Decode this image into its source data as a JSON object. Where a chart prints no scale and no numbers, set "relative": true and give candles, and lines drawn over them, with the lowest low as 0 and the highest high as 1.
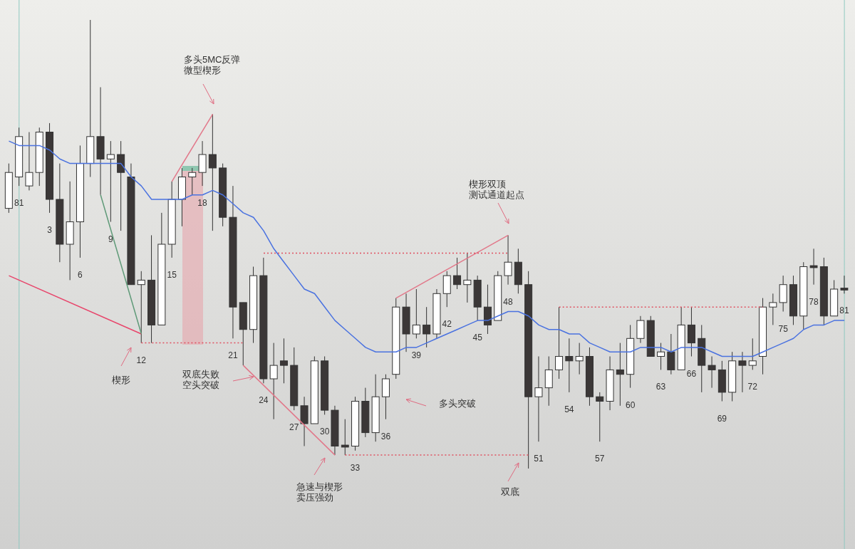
{
  "chart_data": {
    "type": "candlestick",
    "relative": true,
    "marker": "none",
    "categories": [
      null,
      "81",
      null,
      null,
      "3",
      null,
      null,
      "6",
      null,
      null,
      "9",
      null,
      null,
      "12",
      null,
      null,
      "15",
      null,
      null,
      "18",
      null,
      null,
      "21",
      null,
      null,
      "24",
      null,
      null,
      "27",
      null,
      null,
      "30",
      null,
      null,
      "33",
      null,
      null,
      "36",
      null,
      null,
      "39",
      null,
      null,
      "42",
      null,
      null,
      "45",
      null,
      null,
      "48",
      null,
      null,
      "51",
      null,
      null,
      "54",
      null,
      null,
      "57",
      null,
      null,
      "60",
      null,
      null,
      "63",
      null,
      null,
      "66",
      null,
      null,
      "69",
      null,
      null,
      "72",
      null,
      null,
      "75",
      null,
      null,
      "78",
      null,
      null,
      "81"
    ],
    "ohlc": [
      [
        0.58,
        0.68,
        0.57,
        0.66
      ],
      [
        0.65,
        0.76,
        0.63,
        0.74
      ],
      [
        0.63,
        0.75,
        0.62,
        0.66
      ],
      [
        0.66,
        0.76,
        0.63,
        0.75
      ],
      [
        0.75,
        0.77,
        0.57,
        0.6
      ],
      [
        0.6,
        0.68,
        0.46,
        0.5
      ],
      [
        0.5,
        0.64,
        0.42,
        0.55
      ],
      [
        0.55,
        0.72,
        0.47,
        0.68
      ],
      [
        0.68,
        1,
        0.65,
        0.74
      ],
      [
        0.74,
        0.85,
        0.61,
        0.69
      ],
      [
        0.69,
        0.73,
        0.55,
        0.7
      ],
      [
        0.7,
        0.73,
        0.53,
        0.66
      ],
      [
        0.65,
        0.68,
        0.41,
        0.41
      ],
      [
        0.41,
        0.44,
        0.28,
        0.42
      ],
      [
        0.42,
        0.52,
        0.28,
        0.32
      ],
      [
        0.32,
        0.57,
        0.32,
        0.5
      ],
      [
        0.5,
        0.64,
        0.47,
        0.6
      ],
      [
        0.6,
        0.67,
        0.54,
        0.65
      ],
      [
        0.65,
        0.67,
        0.61,
        0.66
      ],
      [
        0.66,
        0.73,
        0.63,
        0.7
      ],
      [
        0.7,
        0.79,
        0.53,
        0.67
      ],
      [
        0.67,
        0.68,
        0.54,
        0.56
      ],
      [
        0.56,
        0.63,
        0.29,
        0.36
      ],
      [
        0.37,
        0.37,
        0.23,
        0.31
      ],
      [
        0.31,
        0.45,
        0.28,
        0.43
      ],
      [
        0.43,
        0.47,
        0.19,
        0.2
      ],
      [
        0.2,
        0.28,
        0.11,
        0.23
      ],
      [
        0.24,
        0.29,
        0.19,
        0.23
      ],
      [
        0.23,
        0.27,
        0.13,
        0.14
      ],
      [
        0.14,
        0.16,
        0.05,
        0.1
      ],
      [
        0.1,
        0.25,
        0.1,
        0.24
      ],
      [
        0.24,
        0.25,
        0.12,
        0.13
      ],
      [
        0.13,
        0.14,
        0.03,
        0.05
      ],
      [
        0.05,
        0.11,
        0.03,
        0.05
      ],
      [
        0.05,
        0.16,
        0.04,
        0.15
      ],
      [
        0.15,
        0.18,
        0.07,
        0.08
      ],
      [
        0.08,
        0.21,
        0.06,
        0.16
      ],
      [
        0.16,
        0.21,
        0.11,
        0.2
      ],
      [
        0.21,
        0.38,
        0.2,
        0.36
      ],
      [
        0.36,
        0.39,
        0.26,
        0.3
      ],
      [
        0.3,
        0.4,
        0.29,
        0.32
      ],
      [
        0.32,
        0.36,
        0.27,
        0.3
      ],
      [
        0.3,
        0.4,
        0.29,
        0.39
      ],
      [
        0.39,
        0.44,
        0.36,
        0.43
      ],
      [
        0.43,
        0.47,
        0.4,
        0.41
      ],
      [
        0.41,
        0.48,
        0.37,
        0.42
      ],
      [
        0.42,
        0.43,
        0.33,
        0.36
      ],
      [
        0.36,
        0.41,
        0.3,
        0.32
      ],
      [
        0.33,
        0.44,
        0.33,
        0.43
      ],
      [
        0.43,
        0.52,
        0.41,
        0.46
      ],
      [
        0.46,
        0.49,
        0.39,
        0.41
      ],
      [
        0.41,
        0.44,
        0,
        0.16
      ],
      [
        0.16,
        0.25,
        0.06,
        0.18
      ],
      [
        0.18,
        0.25,
        0.14,
        0.22
      ],
      [
        0.22,
        0.36,
        0.2,
        0.25
      ],
      [
        0.25,
        0.29,
        0.17,
        0.24
      ],
      [
        0.24,
        0.28,
        0.21,
        0.25
      ],
      [
        0.25,
        0.27,
        0.14,
        0.16
      ],
      [
        0.16,
        0.17,
        0.06,
        0.15
      ],
      [
        0.15,
        0.25,
        0.13,
        0.22
      ],
      [
        0.22,
        0.28,
        0.14,
        0.21
      ],
      [
        0.21,
        0.32,
        0.18,
        0.29
      ],
      [
        0.29,
        0.34,
        0.28,
        0.33
      ],
      [
        0.33,
        0.34,
        0.25,
        0.25
      ],
      [
        0.25,
        0.28,
        0.22,
        0.26
      ],
      [
        0.26,
        0.3,
        0.21,
        0.22
      ],
      [
        0.22,
        0.36,
        0.22,
        0.32
      ],
      [
        0.32,
        0.36,
        0.25,
        0.28
      ],
      [
        0.29,
        0.32,
        0.17,
        0.23
      ],
      [
        0.23,
        0.25,
        0.18,
        0.22
      ],
      [
        0.22,
        0.24,
        0.15,
        0.17
      ],
      [
        0.17,
        0.26,
        0.15,
        0.24
      ],
      [
        0.24,
        0.26,
        0.17,
        0.23
      ],
      [
        0.23,
        0.29,
        0.22,
        0.24
      ],
      [
        0.25,
        0.38,
        0.21,
        0.36
      ],
      [
        0.36,
        0.39,
        0.32,
        0.37
      ],
      [
        0.37,
        0.43,
        0.35,
        0.41
      ],
      [
        0.41,
        0.43,
        0.32,
        0.34
      ],
      [
        0.34,
        0.46,
        0.31,
        0.45
      ],
      [
        0.45,
        0.49,
        0.41,
        0.45
      ],
      [
        0.45,
        0.47,
        0.32,
        0.34
      ],
      [
        0.34,
        0.42,
        0.34,
        0.4
      ],
      [
        0.4,
        0.43,
        0.39,
        0.4
      ]
    ],
    "colors": [
      "#ffffff",
      "#ffffff",
      "#ffffff",
      "#ffffff",
      "#3b3737",
      "#3b3737",
      "#ffffff",
      "#ffffff",
      "#ffffff",
      "#3b3737",
      "#ffffff",
      "#3b3737",
      "#3b3737",
      "#ffffff",
      "#3b3737",
      "#ffffff",
      "#ffffff",
      "#ffffff",
      "#ffffff",
      "#ffffff",
      "#3b3737",
      "#3b3737",
      "#3b3737",
      "#3b3737",
      "#ffffff",
      "#3b3737",
      "#ffffff",
      "#3b3737",
      "#3b3737",
      "#3b3737",
      "#ffffff",
      "#3b3737",
      "#3b3737",
      "#3b3737",
      "#ffffff",
      "#3b3737",
      "#ffffff",
      "#ffffff",
      "#ffffff",
      "#3b3737",
      "#ffffff",
      "#3b3737",
      "#ffffff",
      "#ffffff",
      "#3b3737",
      "#ffffff",
      "#3b3737",
      "#3b3737",
      "#ffffff",
      "#ffffff",
      "#3b3737",
      "#3b3737",
      "#ffffff",
      "#ffffff",
      "#ffffff",
      "#3b3737",
      "#ffffff",
      "#3b3737",
      "#3b3737",
      "#ffffff",
      "#3b3737",
      "#ffffff",
      "#ffffff",
      "#3b3737",
      "#ffffff",
      "#3b3737",
      "#ffffff",
      "#3b3737",
      "#3b3737",
      "#3b3737",
      "#3b3737",
      "#ffffff",
      "#3b3737",
      "#ffffff",
      "#ffffff",
      "#ffffff",
      "#ffffff",
      "#3b3737",
      "#ffffff",
      "#3b3737",
      "#3b3737",
      "#ffffff",
      "#3b3737"
    ],
    "series": [
      {
        "type": "line",
        "color": "#4a72e0",
        "line_style": "solid",
        "values": [
          0.73,
          0.72,
          0.72,
          0.72,
          0.71,
          0.69,
          0.68,
          0.68,
          0.68,
          0.68,
          0.68,
          0.68,
          0.65,
          0.63,
          0.6,
          0.6,
          0.6,
          0.6,
          0.61,
          0.61,
          0.62,
          0.61,
          0.59,
          0.57,
          0.56,
          0.53,
          0.49,
          0.46,
          0.43,
          0.4,
          0.39,
          0.36,
          0.33,
          0.31,
          0.29,
          0.27,
          0.26,
          0.26,
          0.26,
          0.27,
          0.27,
          0.28,
          0.29,
          0.3,
          0.31,
          0.32,
          0.33,
          0.33,
          0.34,
          0.35,
          0.35,
          0.34,
          0.32,
          0.31,
          0.31,
          0.3,
          0.3,
          0.28,
          0.27,
          0.26,
          0.26,
          0.26,
          0.27,
          0.27,
          0.27,
          0.26,
          0.27,
          0.27,
          0.27,
          0.26,
          0.25,
          0.25,
          0.25,
          0.25,
          0.26,
          0.27,
          0.28,
          0.29,
          0.31,
          0.32,
          0.32,
          0.33,
          0.33
        ]
      },
      {
        "type": "line",
        "color": "#e8456b",
        "line_style": "solid",
        "values": [
          0.43,
          null,
          null,
          null,
          null,
          null,
          null,
          null,
          null,
          null,
          null,
          null,
          null,
          0.3,
          null,
          null,
          null,
          null,
          null,
          null,
          null,
          null,
          null,
          null,
          null,
          null,
          null,
          null,
          null,
          null,
          null,
          null,
          null,
          null,
          null,
          null,
          null,
          null,
          null,
          null,
          null,
          null,
          null,
          null,
          null,
          null,
          null,
          null,
          null,
          null,
          null,
          null,
          null,
          null,
          null,
          null,
          null,
          null,
          null,
          null,
          null,
          null,
          null,
          null,
          null,
          null,
          null,
          null,
          null,
          null,
          null,
          null,
          null,
          null,
          null,
          null,
          null,
          null,
          null,
          null,
          null,
          null,
          null
        ]
      },
      {
        "type": "line",
        "color": "#5f9a78",
        "line_style": "solid",
        "values": [
          null,
          null,
          null,
          null,
          null,
          null,
          null,
          null,
          null,
          0.61,
          null,
          null,
          null,
          0.3,
          null,
          null,
          null,
          null,
          null,
          null,
          null,
          null,
          null,
          null,
          null,
          null,
          null,
          null,
          null,
          null,
          null,
          null,
          null,
          null,
          null,
          null,
          null,
          null,
          null,
          null,
          null,
          null,
          null,
          null,
          null,
          null,
          null,
          null,
          null,
          null,
          null,
          null,
          null,
          null,
          null,
          null,
          null,
          null,
          null,
          null,
          null,
          null,
          null,
          null,
          null,
          null,
          null,
          null,
          null,
          null,
          null,
          null,
          null,
          null,
          null,
          null,
          null,
          null,
          null,
          null,
          null,
          null,
          null
        ]
      },
      {
        "type": "line",
        "color": "#e2788a",
        "line_style": "solid",
        "values": [
          null,
          null,
          null,
          null,
          null,
          null,
          null,
          null,
          null,
          null,
          null,
          null,
          null,
          null,
          null,
          null,
          0.64,
          null,
          null,
          null,
          0.79,
          null,
          null,
          null,
          null,
          null,
          null,
          null,
          null,
          null,
          null,
          null,
          null,
          null,
          null,
          null,
          null,
          null,
          null,
          null,
          null,
          null,
          null,
          null,
          null,
          null,
          null,
          null,
          null,
          null,
          null,
          null,
          null,
          null,
          null,
          null,
          null,
          null,
          null,
          null,
          null,
          null,
          null,
          null,
          null,
          null,
          null,
          null,
          null,
          null,
          null,
          null,
          null,
          null,
          null,
          null,
          null,
          null,
          null,
          null,
          null,
          null,
          null
        ]
      },
      {
        "type": "line",
        "color": "#e2788a",
        "line_style": "solid",
        "values": [
          null,
          null,
          null,
          null,
          null,
          null,
          null,
          null,
          null,
          null,
          null,
          null,
          null,
          null,
          null,
          null,
          null,
          null,
          null,
          null,
          null,
          null,
          null,
          0.23,
          null,
          null,
          null,
          null,
          null,
          null,
          null,
          null,
          0.03,
          null,
          null,
          null,
          null,
          null,
          null,
          null,
          null,
          null,
          null,
          null,
          null,
          null,
          null,
          null,
          null,
          null,
          null,
          null,
          null,
          null,
          null,
          null,
          null,
          null,
          null,
          null,
          null,
          null,
          null,
          null,
          null,
          null,
          null,
          null,
          null,
          null,
          null,
          null,
          null,
          null,
          null,
          null,
          null,
          null,
          null,
          null,
          null,
          null,
          null
        ]
      },
      {
        "type": "line",
        "color": "#e2788a",
        "line_style": "solid",
        "values": [
          null,
          null,
          null,
          null,
          null,
          null,
          null,
          null,
          null,
          null,
          null,
          null,
          null,
          null,
          null,
          null,
          null,
          null,
          null,
          null,
          null,
          null,
          null,
          null,
          null,
          null,
          null,
          null,
          null,
          null,
          null,
          null,
          null,
          null,
          null,
          null,
          null,
          null,
          0.38,
          null,
          null,
          null,
          null,
          null,
          null,
          null,
          null,
          null,
          null,
          0.52,
          null,
          null,
          null,
          null,
          null,
          null,
          null,
          null,
          null,
          null,
          null,
          null,
          null,
          null,
          null,
          null,
          null,
          null,
          null,
          null,
          null,
          null,
          null,
          null,
          null,
          null,
          null,
          null,
          null,
          null,
          null,
          null,
          null
        ]
      },
      {
        "type": "line",
        "color": "#e05060",
        "line_style": "dotted",
        "values": [
          null,
          null,
          null,
          null,
          null,
          null,
          null,
          null,
          null,
          null,
          null,
          null,
          null,
          0.28,
          null,
          null,
          null,
          null,
          null,
          null,
          null,
          null,
          null,
          0.28,
          null,
          null,
          null,
          null,
          null,
          null,
          null,
          null,
          null,
          null,
          null,
          null,
          null,
          null,
          null,
          null,
          null,
          null,
          null,
          null,
          null,
          null,
          null,
          null,
          null,
          null,
          null,
          null,
          null,
          null,
          null,
          null,
          null,
          null,
          null,
          null,
          null,
          null,
          null,
          null,
          null,
          null,
          null,
          null,
          null,
          null,
          null,
          null,
          null,
          null,
          null,
          null,
          null,
          null,
          null,
          null,
          null,
          null,
          null
        ]
      },
      {
        "type": "line",
        "color": "#e05060",
        "line_style": "dotted",
        "values": [
          null,
          null,
          null,
          null,
          null,
          null,
          null,
          null,
          null,
          null,
          null,
          null,
          null,
          null,
          null,
          null,
          null,
          null,
          null,
          null,
          null,
          null,
          null,
          null,
          null,
          0.48,
          null,
          null,
          null,
          null,
          null,
          null,
          null,
          null,
          null,
          null,
          null,
          null,
          null,
          null,
          null,
          null,
          null,
          null,
          null,
          null,
          null,
          null,
          null,
          0.48,
          null,
          null,
          null,
          null,
          null,
          null,
          null,
          null,
          null,
          null,
          null,
          null,
          null,
          null,
          null,
          null,
          null,
          null,
          null,
          null,
          null,
          null,
          null,
          null,
          null,
          null,
          null,
          null,
          null,
          null,
          null,
          null,
          null
        ]
      },
      {
        "type": "line",
        "color": "#e05060",
        "line_style": "dotted",
        "values": [
          null,
          null,
          null,
          null,
          null,
          null,
          null,
          null,
          null,
          null,
          null,
          null,
          null,
          null,
          null,
          null,
          null,
          null,
          null,
          null,
          null,
          null,
          null,
          null,
          null,
          null,
          null,
          null,
          null,
          null,
          null,
          null,
          null,
          0.03,
          null,
          null,
          null,
          null,
          null,
          null,
          null,
          null,
          null,
          null,
          null,
          null,
          null,
          null,
          null,
          null,
          null,
          0.03,
          null,
          null,
          null,
          null,
          null,
          null,
          null,
          null,
          null,
          null,
          null,
          null,
          null,
          null,
          null,
          null,
          null,
          null,
          null,
          null,
          null,
          null,
          null,
          null,
          null,
          null,
          null,
          null,
          null,
          null,
          null
        ]
      },
      {
        "type": "line",
        "color": "#e05060",
        "line_style": "dotted",
        "values": [
          null,
          null,
          null,
          null,
          null,
          null,
          null,
          null,
          null,
          null,
          null,
          null,
          null,
          null,
          null,
          null,
          null,
          null,
          null,
          null,
          null,
          null,
          null,
          null,
          null,
          null,
          null,
          null,
          null,
          null,
          null,
          null,
          null,
          null,
          null,
          null,
          null,
          null,
          null,
          null,
          null,
          null,
          null,
          null,
          null,
          null,
          null,
          null,
          null,
          null,
          null,
          null,
          null,
          null,
          0.36,
          null,
          null,
          null,
          null,
          null,
          null,
          null,
          null,
          null,
          null,
          null,
          null,
          null,
          null,
          null,
          null,
          null,
          null,
          null,
          0.36,
          null,
          null,
          null,
          null,
          null,
          null,
          null,
          null
        ]
      }
    ],
    "annotations": [
      "多头5MC反弹",
      "微型楔形",
      "楔形",
      "双底失败",
      "空头突破",
      "急速与楔形",
      "卖压强劲",
      "多头突破",
      "楔形双顶",
      "测试通道起点",
      "双底"
    ]
  }
}
